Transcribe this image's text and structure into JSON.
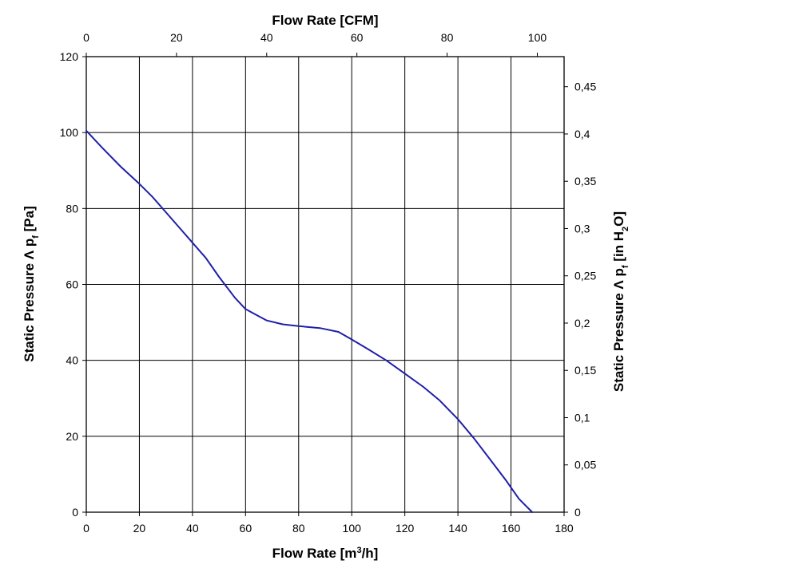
{
  "chart_data": {
    "type": "line",
    "title": "",
    "grid": true,
    "x_bottom": {
      "label_prefix": "Flow Rate [m",
      "label_sup": "3",
      "label_suffix": "/h]",
      "range": [
        0,
        180
      ],
      "ticks": [
        {
          "value": 0,
          "label": "0"
        },
        {
          "value": 20,
          "label": "20"
        },
        {
          "value": 40,
          "label": "40"
        },
        {
          "value": 60,
          "label": "60"
        },
        {
          "value": 80,
          "label": "80"
        },
        {
          "value": 100,
          "label": "100"
        },
        {
          "value": 120,
          "label": "120"
        },
        {
          "value": 140,
          "label": "140"
        },
        {
          "value": 160,
          "label": "160"
        },
        {
          "value": 180,
          "label": "180"
        }
      ]
    },
    "x_top": {
      "label": "Flow Rate [CFM]",
      "range": [
        0,
        105.94
      ],
      "ticks": [
        {
          "value": 0,
          "label": "0"
        },
        {
          "value": 20,
          "label": "20"
        },
        {
          "value": 40,
          "label": "40"
        },
        {
          "value": 60,
          "label": "60"
        },
        {
          "value": 80,
          "label": "80"
        },
        {
          "value": 100,
          "label": "100"
        }
      ]
    },
    "y_left": {
      "label_main": "Static Pressure Λ p",
      "label_sub": "f",
      "label_suffix": " [Pa]",
      "range": [
        0,
        120
      ],
      "ticks": [
        {
          "value": 0,
          "label": "0"
        },
        {
          "value": 20,
          "label": "20"
        },
        {
          "value": 40,
          "label": "40"
        },
        {
          "value": 60,
          "label": "60"
        },
        {
          "value": 80,
          "label": "80"
        },
        {
          "value": 100,
          "label": "100"
        },
        {
          "value": 120,
          "label": "120"
        }
      ]
    },
    "y_right": {
      "label_main": "Static Pressure Λ p",
      "label_sub": "f",
      "label_mid": " [in H",
      "label_sub2": "2",
      "label_end": "O]",
      "range": [
        0,
        0.4818
      ],
      "ticks": [
        {
          "value": 0,
          "label": "0"
        },
        {
          "value": 0.05,
          "label": "0,05"
        },
        {
          "value": 0.1,
          "label": "0,1"
        },
        {
          "value": 0.15,
          "label": "0,15"
        },
        {
          "value": 0.2,
          "label": "0,2"
        },
        {
          "value": 0.25,
          "label": "0,25"
        },
        {
          "value": 0.3,
          "label": "0,3"
        },
        {
          "value": 0.35,
          "label": "0,35"
        },
        {
          "value": 0.4,
          "label": "0,4"
        },
        {
          "value": 0.45,
          "label": "0,45"
        }
      ]
    },
    "series": [
      {
        "color": "#1f1fa8",
        "x": [
          0,
          6,
          13,
          20,
          25,
          30,
          35,
          40,
          45,
          50,
          56,
          60,
          64,
          68,
          74,
          80,
          88,
          95,
          100,
          106,
          113,
          120,
          127,
          133,
          140,
          146,
          152,
          158,
          163,
          168
        ],
        "y": [
          100.5,
          96,
          91,
          86.5,
          83,
          79,
          75,
          71,
          67,
          62,
          56.5,
          53.5,
          52,
          50.5,
          49.5,
          49,
          48.5,
          47.5,
          45.5,
          43,
          40,
          36.5,
          33,
          29.5,
          24.5,
          19.5,
          14,
          8.5,
          3.5,
          0
        ]
      }
    ]
  }
}
